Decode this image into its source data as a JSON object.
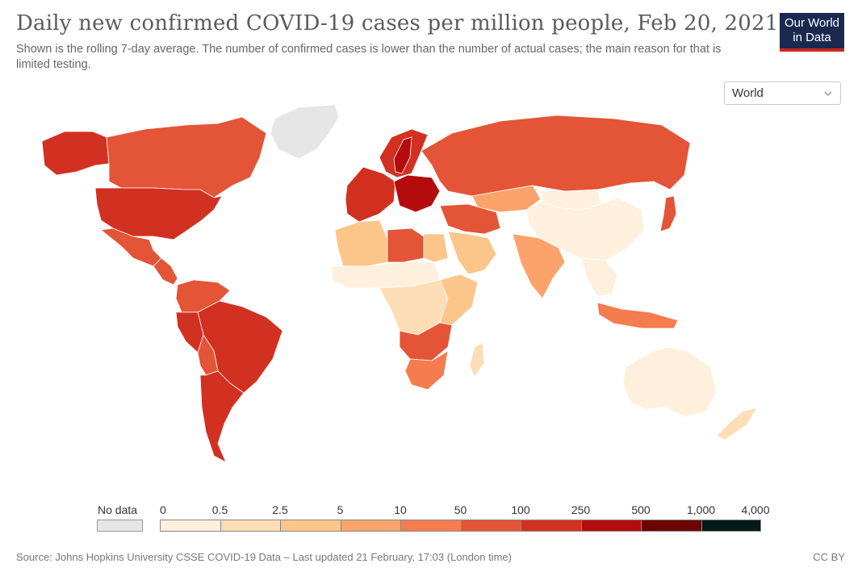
{
  "header": {
    "title": "Daily new confirmed COVID-19 cases per million people, Feb 20, 2021",
    "subtitle": "Shown is the rolling 7-day average. The number of confirmed cases is lower than the number of actual cases; the main reason for that is limited testing.",
    "logo_line1": "Our World",
    "logo_line2": "in Data"
  },
  "region_select": {
    "value": "World"
  },
  "legend": {
    "no_data_label": "No data",
    "no_data_color": "#e6e6e6",
    "ticks": [
      "0",
      "0.5",
      "2.5",
      "5",
      "10",
      "50",
      "100",
      "250",
      "500",
      "1,000",
      "4,000"
    ],
    "colors": [
      "#fef0dd",
      "#fdddb5",
      "#fcc68a",
      "#fba36a",
      "#f47c4f",
      "#e45437",
      "#d23021",
      "#b40c0c",
      "#6b0404",
      "#041a19"
    ]
  },
  "map_regions": [
    {
      "name": "Canada",
      "color": "#e45437"
    },
    {
      "name": "USA",
      "color": "#d23021"
    },
    {
      "name": "Alaska",
      "color": "#d23021"
    },
    {
      "name": "Greenland",
      "color": "#e6e6e6"
    },
    {
      "name": "Mexico",
      "color": "#e45437"
    },
    {
      "name": "Central America",
      "color": "#e45437"
    },
    {
      "name": "Brazil",
      "color": "#d23021"
    },
    {
      "name": "Peru",
      "color": "#d23021"
    },
    {
      "name": "Bolivia",
      "color": "#e45437"
    },
    {
      "name": "Argentina",
      "color": "#d23021"
    },
    {
      "name": "Colombia & Venezuela",
      "color": "#e45437"
    },
    {
      "name": "Russia",
      "color": "#e45437"
    },
    {
      "name": "Scandinavia",
      "color": "#d23021"
    },
    {
      "name": "Sweden",
      "color": "#b40c0c"
    },
    {
      "name": "Western Europe",
      "color": "#d23021"
    },
    {
      "name": "Central Europe",
      "color": "#b40c0c"
    },
    {
      "name": "Kazakhstan",
      "color": "#fba36a"
    },
    {
      "name": "Mongolia",
      "color": "#fef0dd"
    },
    {
      "name": "China",
      "color": "#fef0dd"
    },
    {
      "name": "Japan",
      "color": "#e45437"
    },
    {
      "name": "India",
      "color": "#fba36a"
    },
    {
      "name": "Middle East",
      "color": "#e45437"
    },
    {
      "name": "Saudi Arabia",
      "color": "#fcc68a"
    },
    {
      "name": "North Africa West",
      "color": "#fcc68a"
    },
    {
      "name": "Libya",
      "color": "#e45437"
    },
    {
      "name": "Egypt",
      "color": "#fcc68a"
    },
    {
      "name": "Sahel",
      "color": "#fef0dd"
    },
    {
      "name": "Central Africa",
      "color": "#fdddb5"
    },
    {
      "name": "East Africa",
      "color": "#fcc68a"
    },
    {
      "name": "Southern Africa",
      "color": "#e45437"
    },
    {
      "name": "South Africa",
      "color": "#f47c4f"
    },
    {
      "name": "Madagascar",
      "color": "#fdddb5"
    },
    {
      "name": "Southeast Asia",
      "color": "#fef0dd"
    },
    {
      "name": "Indonesia",
      "color": "#f47c4f"
    },
    {
      "name": "Australia",
      "color": "#fef0dd"
    },
    {
      "name": "New Zealand",
      "color": "#fdddb5"
    }
  ],
  "footer": {
    "source": "Source: Johns Hopkins University CSSE COVID-19 Data – Last updated 21 February, 17:03 (London time)",
    "license": "CC BY"
  }
}
